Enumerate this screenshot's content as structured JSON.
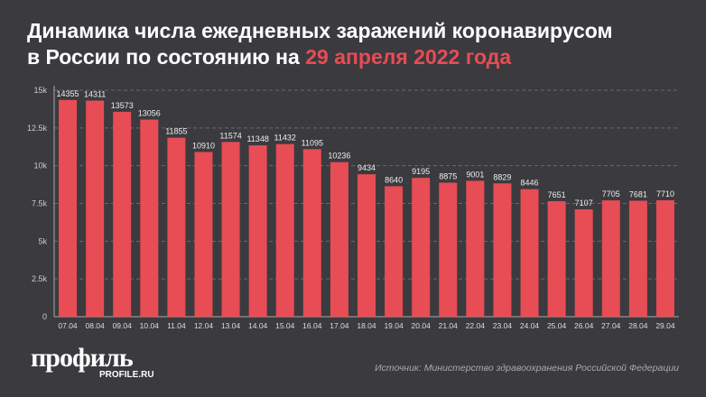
{
  "title": {
    "line1": "Динамика числа ежедневных заражений коронавирусом",
    "line2_prefix": "в России по состоянию на ",
    "line2_highlight": "29 апреля 2022 года"
  },
  "colors": {
    "background": "#3b3a3f",
    "bar": "#e84c55",
    "highlight": "#e84c55",
    "grid": "#6a696e"
  },
  "logo": {
    "text": "профиль",
    "sub": "PROFILE.RU"
  },
  "source": "Источник: Министерство здравоохранения Российской Федерации",
  "chart_data": {
    "type": "bar",
    "categories": [
      "07.04",
      "08.04",
      "09.04",
      "10.04",
      "11.04",
      "12.04",
      "13.04",
      "14.04",
      "15.04",
      "16.04",
      "17.04",
      "18.04",
      "19.04",
      "20.04",
      "21.04",
      "22.04",
      "23.04",
      "24.04",
      "25.04",
      "26.04",
      "27.04",
      "28.04",
      "29.04"
    ],
    "values": [
      14355,
      14311,
      13573,
      13056,
      11855,
      10910,
      11574,
      11348,
      11432,
      11095,
      10236,
      9434,
      8640,
      9195,
      8875,
      9001,
      8829,
      8446,
      7651,
      7107,
      7705,
      7681,
      7710
    ],
    "ylim": [
      0,
      15000
    ],
    "yticks": [
      {
        "v": 0,
        "label": "0"
      },
      {
        "v": 2500,
        "label": "2.5k"
      },
      {
        "v": 5000,
        "label": "5k"
      },
      {
        "v": 7500,
        "label": "7.5k"
      },
      {
        "v": 10000,
        "label": "10k"
      },
      {
        "v": 12500,
        "label": "12.5k"
      },
      {
        "v": 15000,
        "label": "15k"
      }
    ],
    "grid": true,
    "data_labels": true
  }
}
